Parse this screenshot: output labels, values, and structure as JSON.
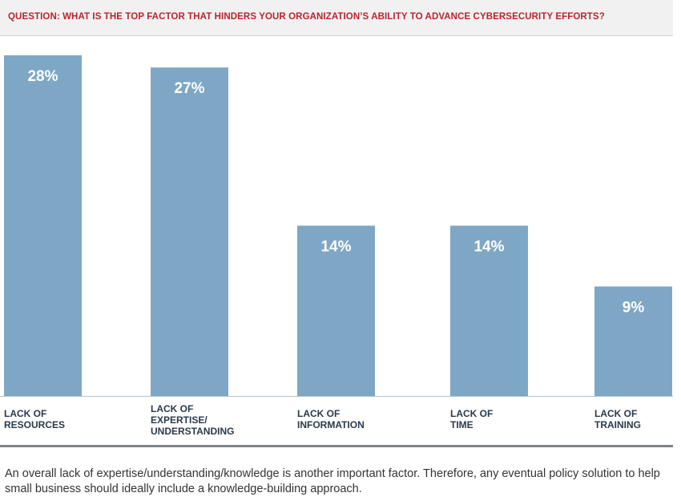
{
  "question": "QUESTION: WHAT IS THE TOP FACTOR THAT HINDERS YOUR ORGANIZATION’S ABILITY TO ADVANCE CYBERSECURITY EFFORTS?",
  "footnote": "An overall lack of expertise/understanding/knowledge is another important factor. Therefore, any eventual policy solution to help small business should ideally include a knowledge-building approach.",
  "colors": {
    "bar": "#7ea7c6",
    "question_text": "#c0212f",
    "value_label": "#ffffff",
    "axis": "#7d848c"
  },
  "chart_data": {
    "type": "bar",
    "categories": [
      "LACK OF RESOURCES",
      "LACK OF EXPERTISE/ UNDERSTANDING",
      "LACK OF INFORMATION",
      "LACK OF TIME",
      "LACK OF TRAINING"
    ],
    "category_lines": [
      [
        "LACK OF",
        "RESOURCES"
      ],
      [
        "LACK OF",
        "EXPERTISE/",
        "UNDERSTANDING"
      ],
      [
        "LACK OF",
        "INFORMATION"
      ],
      [
        "LACK OF",
        "TIME"
      ],
      [
        "LACK OF",
        "TRAINING"
      ]
    ],
    "values": [
      28,
      27,
      14,
      14,
      9
    ],
    "value_labels": [
      "28%",
      "27%",
      "14%",
      "14%",
      "9%"
    ],
    "unit": "%",
    "ylim": [
      0,
      28
    ],
    "grid": false,
    "legend": "none"
  }
}
